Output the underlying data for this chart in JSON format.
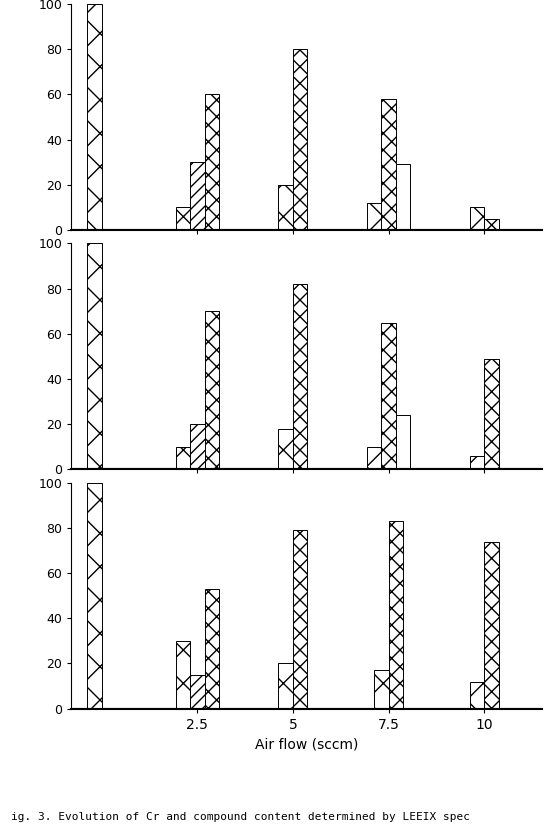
{
  "xlabel": "Air flow (sccm)",
  "x_positions": [
    0,
    2.5,
    5,
    7.5,
    10
  ],
  "ylim": [
    0,
    100
  ],
  "subplots": [
    {
      "bar_diag": [
        100,
        10,
        20,
        12,
        10
      ],
      "bar_fwd": [
        0,
        30,
        0,
        0,
        0
      ],
      "bar_cross": [
        0,
        60,
        80,
        58,
        5
      ],
      "bar_horiz": [
        0,
        0,
        0,
        29,
        0
      ]
    },
    {
      "bar_diag": [
        100,
        10,
        18,
        10,
        6
      ],
      "bar_fwd": [
        0,
        20,
        0,
        0,
        0
      ],
      "bar_cross": [
        0,
        70,
        82,
        65,
        49
      ],
      "bar_horiz": [
        0,
        0,
        0,
        24,
        0
      ]
    },
    {
      "bar_diag": [
        100,
        30,
        20,
        17,
        12
      ],
      "bar_fwd": [
        0,
        15,
        0,
        0,
        0
      ],
      "bar_cross": [
        0,
        53,
        79,
        83,
        74
      ],
      "bar_horiz": [
        0,
        0,
        0,
        0,
        0
      ]
    }
  ],
  "bar_width": 0.38,
  "background_color": "#ffffff",
  "caption": "ig. 3. Evolution of Cr and compound content determined by LEEIX spec"
}
